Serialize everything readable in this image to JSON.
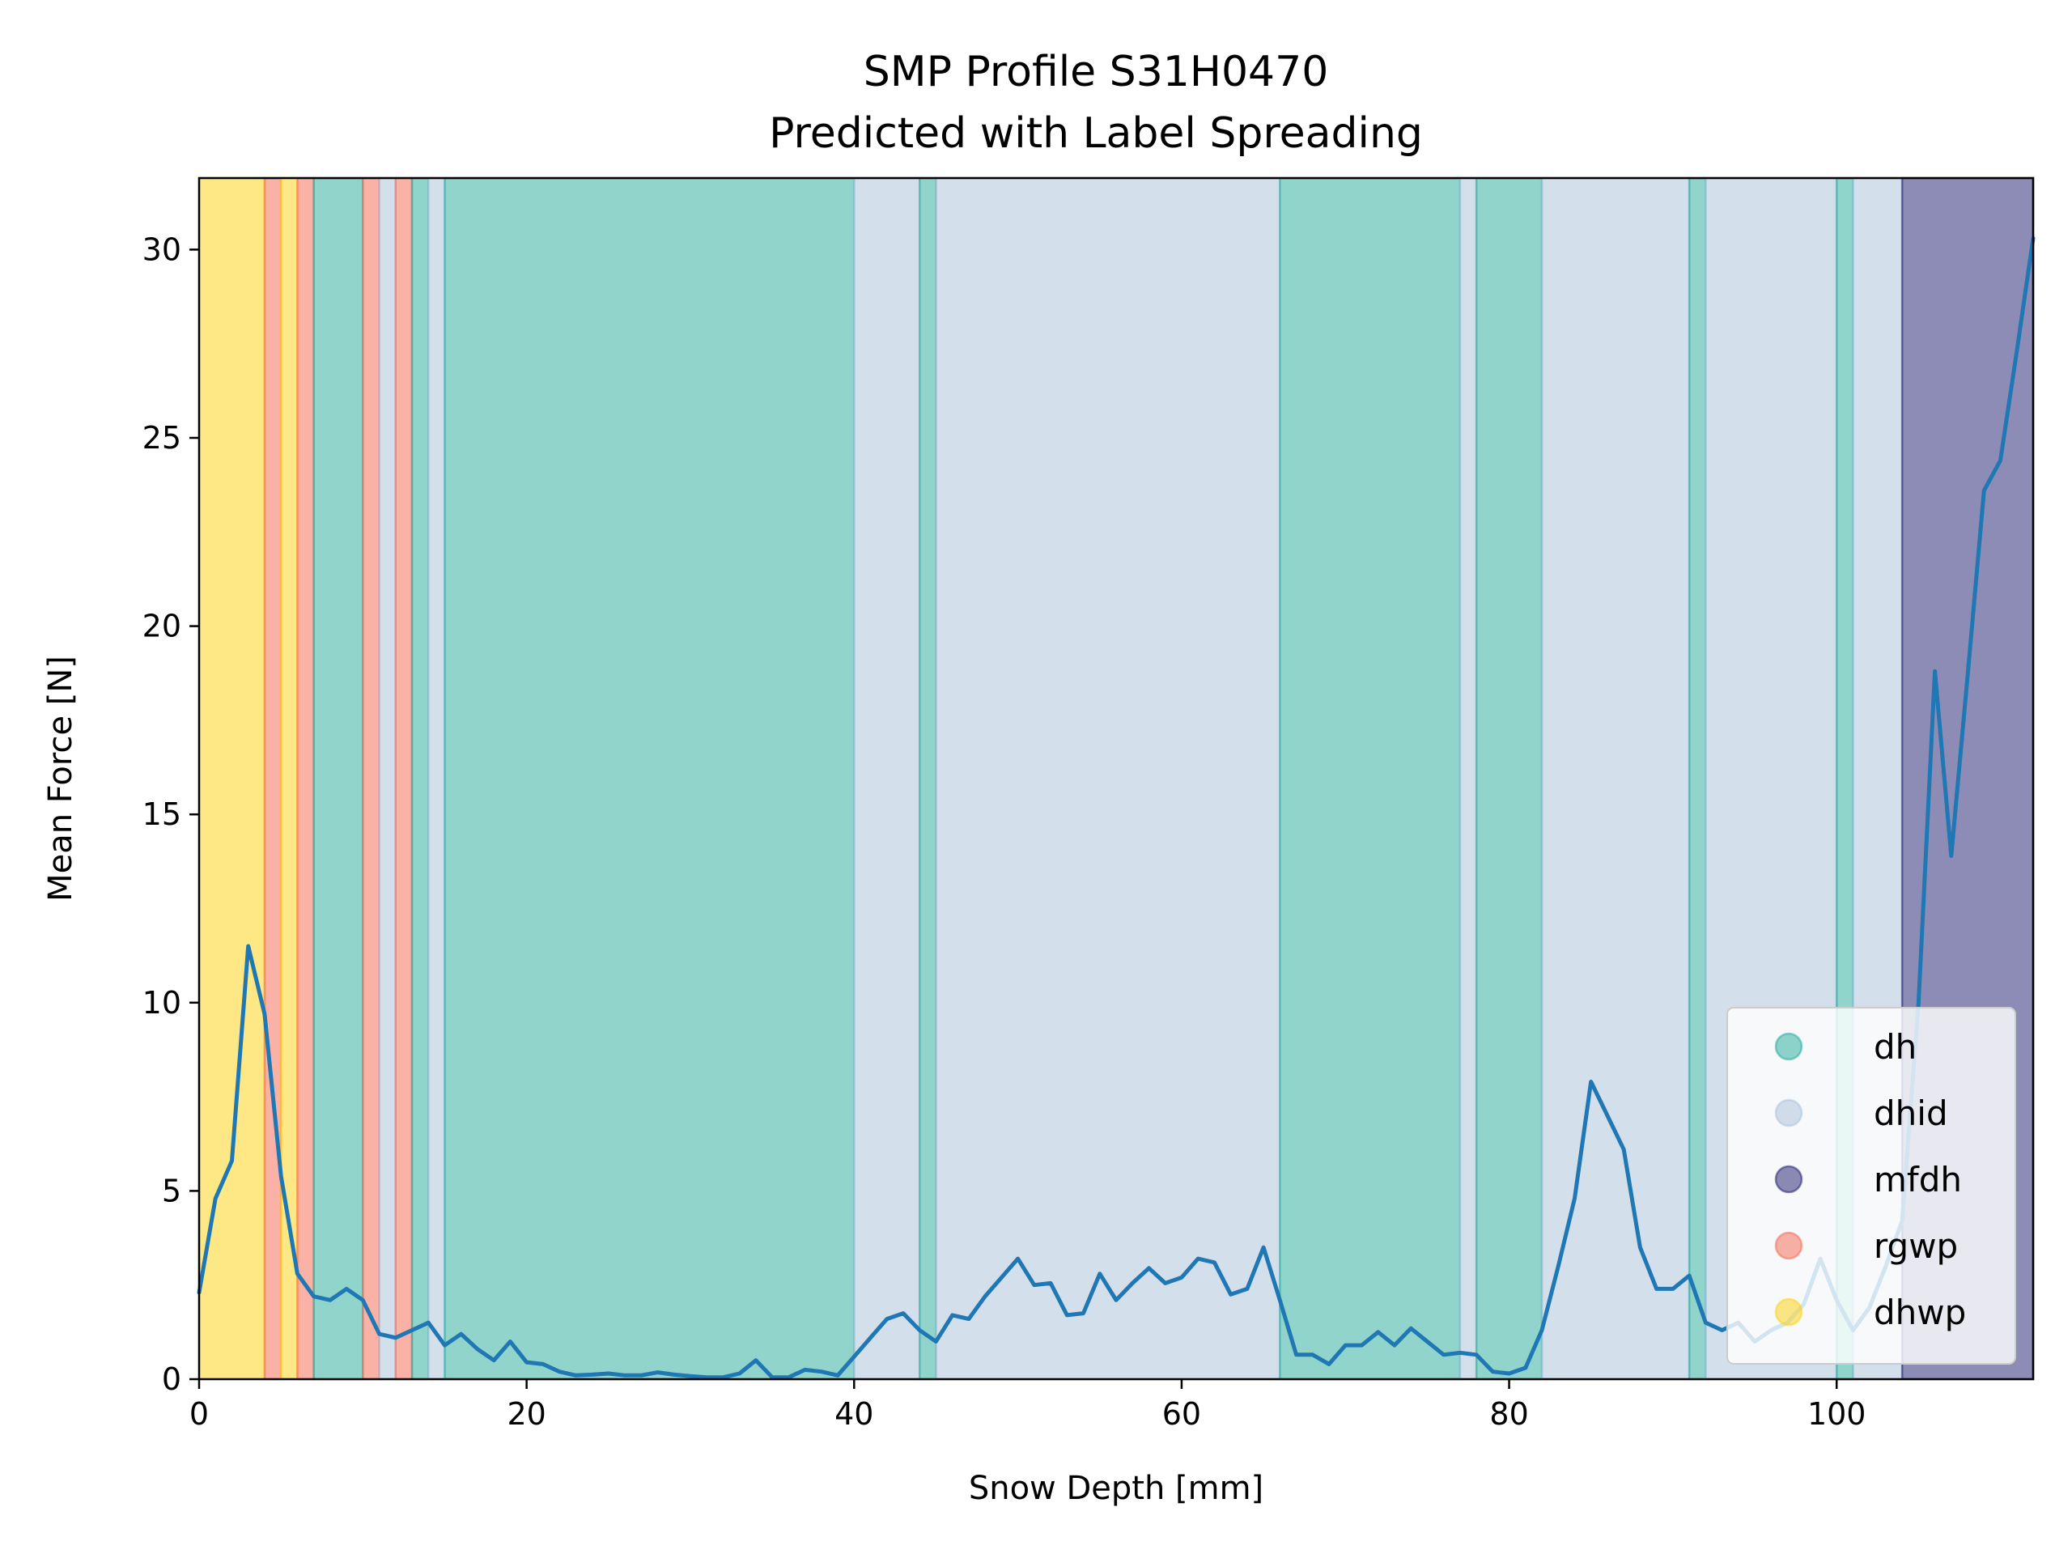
{
  "chart_data": {
    "type": "line",
    "title": "SMP Profile S31H0470",
    "subtitle": "Predicted with Label Spreading",
    "xlabel": "Snow Depth [mm]",
    "ylabel": "Mean Force [N]",
    "xlim": [
      0,
      112
    ],
    "ylim": [
      0,
      31.9
    ],
    "xticks": [
      0,
      20,
      40,
      60,
      80,
      100
    ],
    "yticks": [
      0,
      5,
      10,
      15,
      20,
      25,
      30
    ],
    "grid": false,
    "legend_position": "lower-right",
    "classes": [
      {
        "label": "dh",
        "color": "#22aa99"
      },
      {
        "label": "dhid",
        "color": "#aabfd9"
      },
      {
        "label": "mfdh",
        "color": "#1b1a6e"
      },
      {
        "label": "rgwp",
        "color": "#f56650"
      },
      {
        "label": "dhwp",
        "color": "#fdd10e"
      }
    ],
    "layers": [
      {
        "start": 0,
        "end": 4,
        "label": "dhwp"
      },
      {
        "start": 4,
        "end": 5,
        "label": "rgwp"
      },
      {
        "start": 5,
        "end": 6,
        "label": "dhwp"
      },
      {
        "start": 6,
        "end": 7,
        "label": "rgwp"
      },
      {
        "start": 7,
        "end": 10,
        "label": "dh"
      },
      {
        "start": 10,
        "end": 11,
        "label": "rgwp"
      },
      {
        "start": 11,
        "end": 12,
        "label": "dhid"
      },
      {
        "start": 12,
        "end": 13,
        "label": "rgwp"
      },
      {
        "start": 13,
        "end": 14,
        "label": "dh"
      },
      {
        "start": 14,
        "end": 15,
        "label": "dhid"
      },
      {
        "start": 15,
        "end": 40,
        "label": "dh"
      },
      {
        "start": 40,
        "end": 44,
        "label": "dhid"
      },
      {
        "start": 44,
        "end": 45,
        "label": "dh"
      },
      {
        "start": 45,
        "end": 66,
        "label": "dhid"
      },
      {
        "start": 66,
        "end": 77,
        "label": "dh"
      },
      {
        "start": 77,
        "end": 78,
        "label": "dhid"
      },
      {
        "start": 78,
        "end": 82,
        "label": "dh"
      },
      {
        "start": 82,
        "end": 91,
        "label": "dhid"
      },
      {
        "start": 91,
        "end": 92,
        "label": "dh"
      },
      {
        "start": 92,
        "end": 100,
        "label": "dhid"
      },
      {
        "start": 100,
        "end": 101,
        "label": "dh"
      },
      {
        "start": 101,
        "end": 104,
        "label": "dhid"
      },
      {
        "start": 104,
        "end": 112,
        "label": "mfdh"
      }
    ],
    "series": [
      {
        "line_color": "#1f77b4",
        "x": [
          0,
          1,
          2,
          3,
          4,
          5,
          6,
          7,
          8,
          9,
          10,
          11,
          12,
          13,
          14,
          15,
          16,
          17,
          18,
          19,
          20,
          21,
          22,
          23,
          24,
          25,
          26,
          27,
          28,
          29,
          30,
          31,
          32,
          33,
          34,
          35,
          36,
          37,
          38,
          39,
          40,
          41,
          42,
          43,
          44,
          45,
          46,
          47,
          48,
          49,
          50,
          51,
          52,
          53,
          54,
          55,
          56,
          57,
          58,
          59,
          60,
          61,
          62,
          63,
          64,
          65,
          66,
          67,
          68,
          69,
          70,
          71,
          72,
          73,
          74,
          75,
          76,
          77,
          78,
          79,
          80,
          81,
          82,
          83,
          84,
          85,
          86,
          87,
          88,
          89,
          90,
          91,
          92,
          93,
          94,
          95,
          96,
          97,
          98,
          99,
          100,
          101,
          102,
          103,
          104,
          105,
          106,
          107,
          108,
          109,
          110,
          111,
          112
        ],
        "y": [
          2.3,
          4.8,
          5.8,
          11.5,
          9.7,
          5.4,
          2.8,
          2.2,
          2.1,
          2.4,
          2.1,
          1.2,
          1.1,
          1.3,
          1.5,
          0.9,
          1.2,
          0.8,
          0.5,
          1.0,
          0.45,
          0.4,
          0.2,
          0.1,
          0.12,
          0.15,
          0.1,
          0.1,
          0.18,
          0.12,
          0.08,
          0.05,
          0.05,
          0.15,
          0.5,
          0.05,
          0.05,
          0.25,
          0.2,
          0.1,
          0.6,
          1.1,
          1.6,
          1.75,
          1.3,
          1.0,
          1.7,
          1.6,
          2.2,
          2.7,
          3.2,
          2.5,
          2.55,
          1.7,
          1.75,
          2.8,
          2.1,
          2.55,
          2.95,
          2.55,
          2.7,
          3.2,
          3.1,
          2.25,
          2.4,
          3.5,
          2.1,
          0.65,
          0.65,
          0.4,
          0.9,
          0.9,
          1.25,
          0.9,
          1.35,
          1.0,
          0.65,
          0.7,
          0.65,
          0.2,
          0.15,
          0.3,
          1.3,
          3.0,
          4.8,
          7.9,
          7.0,
          6.1,
          3.5,
          2.4,
          2.4,
          2.75,
          1.5,
          1.3,
          1.5,
          1.0,
          1.3,
          1.5,
          2.0,
          3.2,
          2.1,
          1.3,
          1.9,
          3.0,
          4.2,
          10.0,
          18.8,
          13.9,
          18.7,
          23.6,
          24.4,
          27.3,
          30.3
        ]
      }
    ]
  }
}
